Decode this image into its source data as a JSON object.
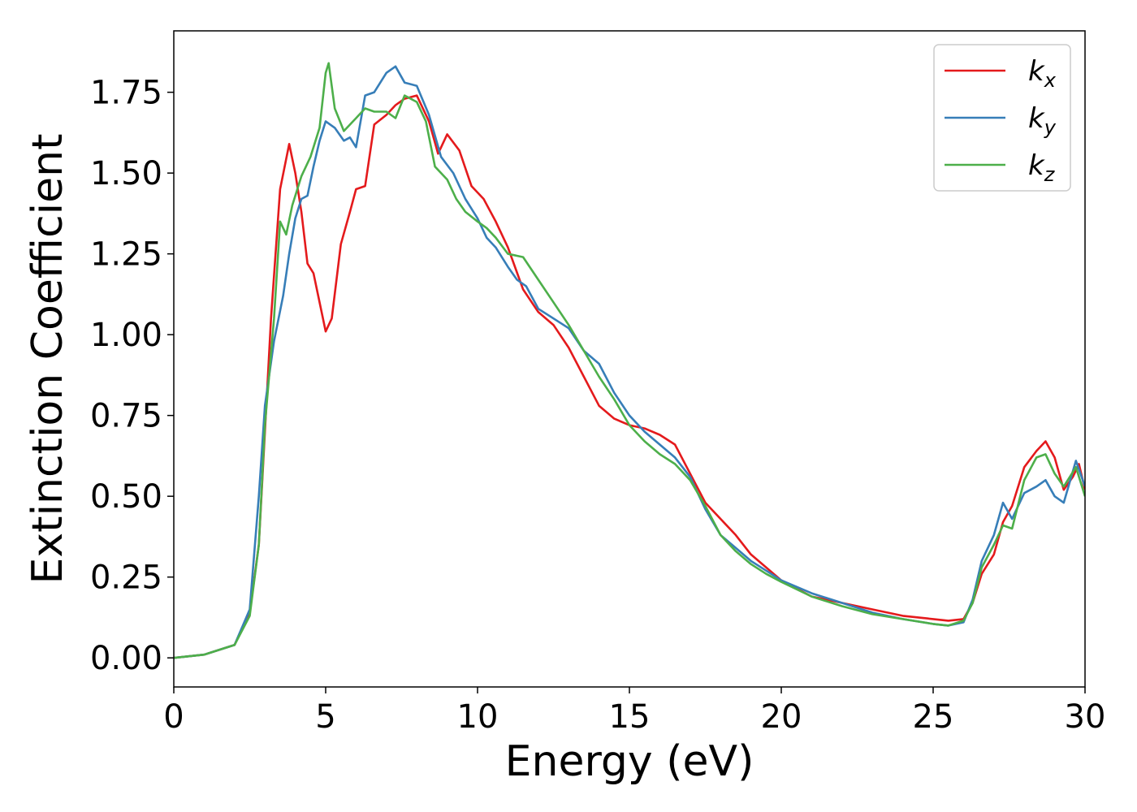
{
  "chart_data": {
    "type": "line",
    "xlabel": "Energy (eV)",
    "ylabel": "Extinction Coefficient",
    "xlim": [
      0,
      30
    ],
    "ylim": [
      -0.09,
      1.94
    ],
    "xticks": [
      0,
      5,
      10,
      15,
      20,
      25,
      30
    ],
    "yticks": [
      "0.00",
      "0.25",
      "0.50",
      "0.75",
      "1.00",
      "1.25",
      "1.50",
      "1.75"
    ],
    "grid": false,
    "legend_position": "top-right",
    "series": [
      {
        "name": "kx",
        "label_main": "k",
        "label_sub": "x",
        "color": "#e41a1c",
        "points": [
          [
            0,
            0
          ],
          [
            1,
            0.01
          ],
          [
            2,
            0.04
          ],
          [
            2.5,
            0.14
          ],
          [
            2.8,
            0.35
          ],
          [
            3.0,
            0.7
          ],
          [
            3.2,
            1.05
          ],
          [
            3.5,
            1.45
          ],
          [
            3.8,
            1.59
          ],
          [
            4.0,
            1.5
          ],
          [
            4.2,
            1.38
          ],
          [
            4.4,
            1.22
          ],
          [
            4.6,
            1.19
          ],
          [
            4.8,
            1.1
          ],
          [
            5.0,
            1.01
          ],
          [
            5.2,
            1.05
          ],
          [
            5.5,
            1.28
          ],
          [
            5.8,
            1.38
          ],
          [
            6.0,
            1.45
          ],
          [
            6.3,
            1.46
          ],
          [
            6.6,
            1.65
          ],
          [
            7.0,
            1.68
          ],
          [
            7.3,
            1.71
          ],
          [
            7.6,
            1.73
          ],
          [
            8.0,
            1.74
          ],
          [
            8.4,
            1.66
          ],
          [
            8.7,
            1.56
          ],
          [
            9.0,
            1.62
          ],
          [
            9.4,
            1.57
          ],
          [
            9.8,
            1.46
          ],
          [
            10.2,
            1.42
          ],
          [
            10.6,
            1.35
          ],
          [
            11.0,
            1.27
          ],
          [
            11.5,
            1.14
          ],
          [
            12.0,
            1.07
          ],
          [
            12.5,
            1.03
          ],
          [
            13.0,
            0.96
          ],
          [
            13.5,
            0.87
          ],
          [
            14.0,
            0.78
          ],
          [
            14.5,
            0.74
          ],
          [
            15.0,
            0.72
          ],
          [
            15.5,
            0.71
          ],
          [
            16.0,
            0.69
          ],
          [
            16.5,
            0.66
          ],
          [
            17.0,
            0.57
          ],
          [
            17.5,
            0.48
          ],
          [
            18.0,
            0.43
          ],
          [
            18.5,
            0.38
          ],
          [
            19.0,
            0.32
          ],
          [
            19.5,
            0.28
          ],
          [
            20.0,
            0.24
          ],
          [
            21.0,
            0.19
          ],
          [
            22.0,
            0.17
          ],
          [
            23.0,
            0.15
          ],
          [
            24.0,
            0.13
          ],
          [
            25.0,
            0.12
          ],
          [
            25.5,
            0.115
          ],
          [
            26.0,
            0.12
          ],
          [
            26.3,
            0.17
          ],
          [
            26.6,
            0.26
          ],
          [
            27.0,
            0.32
          ],
          [
            27.3,
            0.42
          ],
          [
            27.6,
            0.47
          ],
          [
            28.0,
            0.59
          ],
          [
            28.4,
            0.64
          ],
          [
            28.7,
            0.67
          ],
          [
            29.0,
            0.62
          ],
          [
            29.3,
            0.52
          ],
          [
            29.6,
            0.56
          ],
          [
            29.8,
            0.6
          ],
          [
            30.0,
            0.52
          ]
        ]
      },
      {
        "name": "ky",
        "label_main": "k",
        "label_sub": "y",
        "color": "#377eb8",
        "points": [
          [
            0,
            0
          ],
          [
            1,
            0.01
          ],
          [
            2,
            0.04
          ],
          [
            2.5,
            0.15
          ],
          [
            2.8,
            0.5
          ],
          [
            3.0,
            0.78
          ],
          [
            3.3,
            0.98
          ],
          [
            3.6,
            1.12
          ],
          [
            3.8,
            1.25
          ],
          [
            4.0,
            1.36
          ],
          [
            4.2,
            1.42
          ],
          [
            4.4,
            1.43
          ],
          [
            4.6,
            1.52
          ],
          [
            4.8,
            1.6
          ],
          [
            5.0,
            1.66
          ],
          [
            5.3,
            1.64
          ],
          [
            5.6,
            1.6
          ],
          [
            5.8,
            1.61
          ],
          [
            6.0,
            1.58
          ],
          [
            6.3,
            1.74
          ],
          [
            6.6,
            1.75
          ],
          [
            7.0,
            1.81
          ],
          [
            7.3,
            1.83
          ],
          [
            7.6,
            1.78
          ],
          [
            8.0,
            1.77
          ],
          [
            8.4,
            1.68
          ],
          [
            8.8,
            1.55
          ],
          [
            9.2,
            1.5
          ],
          [
            9.6,
            1.42
          ],
          [
            10.0,
            1.36
          ],
          [
            10.3,
            1.3
          ],
          [
            10.6,
            1.27
          ],
          [
            11.0,
            1.21
          ],
          [
            11.3,
            1.17
          ],
          [
            11.6,
            1.15
          ],
          [
            12.0,
            1.08
          ],
          [
            12.5,
            1.05
          ],
          [
            13.0,
            1.02
          ],
          [
            13.5,
            0.95
          ],
          [
            14.0,
            0.91
          ],
          [
            14.5,
            0.82
          ],
          [
            15.0,
            0.75
          ],
          [
            15.5,
            0.7
          ],
          [
            16.0,
            0.66
          ],
          [
            16.5,
            0.62
          ],
          [
            17.0,
            0.56
          ],
          [
            17.5,
            0.46
          ],
          [
            18.0,
            0.38
          ],
          [
            18.5,
            0.34
          ],
          [
            19.0,
            0.3
          ],
          [
            19.5,
            0.27
          ],
          [
            20.0,
            0.24
          ],
          [
            21.0,
            0.2
          ],
          [
            22.0,
            0.17
          ],
          [
            23.0,
            0.14
          ],
          [
            24.0,
            0.12
          ],
          [
            25.0,
            0.105
          ],
          [
            25.5,
            0.1
          ],
          [
            26.0,
            0.11
          ],
          [
            26.3,
            0.18
          ],
          [
            26.6,
            0.3
          ],
          [
            27.0,
            0.38
          ],
          [
            27.3,
            0.48
          ],
          [
            27.6,
            0.43
          ],
          [
            28.0,
            0.51
          ],
          [
            28.4,
            0.53
          ],
          [
            28.7,
            0.55
          ],
          [
            29.0,
            0.5
          ],
          [
            29.3,
            0.48
          ],
          [
            29.7,
            0.61
          ],
          [
            30.0,
            0.53
          ]
        ]
      },
      {
        "name": "kz",
        "label_main": "k",
        "label_sub": "z",
        "color": "#4daf4a",
        "points": [
          [
            0,
            0
          ],
          [
            1,
            0.01
          ],
          [
            2,
            0.04
          ],
          [
            2.5,
            0.13
          ],
          [
            2.8,
            0.35
          ],
          [
            3.0,
            0.72
          ],
          [
            3.3,
            1.05
          ],
          [
            3.5,
            1.35
          ],
          [
            3.7,
            1.31
          ],
          [
            3.9,
            1.4
          ],
          [
            4.2,
            1.49
          ],
          [
            4.5,
            1.55
          ],
          [
            4.8,
            1.64
          ],
          [
            5.0,
            1.81
          ],
          [
            5.1,
            1.84
          ],
          [
            5.3,
            1.7
          ],
          [
            5.6,
            1.63
          ],
          [
            6.0,
            1.67
          ],
          [
            6.3,
            1.7
          ],
          [
            6.6,
            1.69
          ],
          [
            7.0,
            1.69
          ],
          [
            7.3,
            1.67
          ],
          [
            7.6,
            1.74
          ],
          [
            8.0,
            1.72
          ],
          [
            8.3,
            1.66
          ],
          [
            8.6,
            1.52
          ],
          [
            9.0,
            1.48
          ],
          [
            9.3,
            1.42
          ],
          [
            9.6,
            1.38
          ],
          [
            10.0,
            1.35
          ],
          [
            10.3,
            1.33
          ],
          [
            10.6,
            1.3
          ],
          [
            11.0,
            1.25
          ],
          [
            11.5,
            1.24
          ],
          [
            12.0,
            1.17
          ],
          [
            12.5,
            1.1
          ],
          [
            13.0,
            1.03
          ],
          [
            13.5,
            0.95
          ],
          [
            14.0,
            0.87
          ],
          [
            14.5,
            0.8
          ],
          [
            15.0,
            0.72
          ],
          [
            15.5,
            0.67
          ],
          [
            16.0,
            0.63
          ],
          [
            16.5,
            0.6
          ],
          [
            17.0,
            0.55
          ],
          [
            17.5,
            0.47
          ],
          [
            18.0,
            0.38
          ],
          [
            18.5,
            0.33
          ],
          [
            19.0,
            0.29
          ],
          [
            19.5,
            0.26
          ],
          [
            20.0,
            0.235
          ],
          [
            21.0,
            0.19
          ],
          [
            22.0,
            0.16
          ],
          [
            23.0,
            0.135
          ],
          [
            24.0,
            0.12
          ],
          [
            25.0,
            0.105
          ],
          [
            25.5,
            0.1
          ],
          [
            26.0,
            0.115
          ],
          [
            26.3,
            0.17
          ],
          [
            26.6,
            0.28
          ],
          [
            27.0,
            0.35
          ],
          [
            27.3,
            0.41
          ],
          [
            27.6,
            0.4
          ],
          [
            28.0,
            0.55
          ],
          [
            28.4,
            0.62
          ],
          [
            28.7,
            0.63
          ],
          [
            29.0,
            0.57
          ],
          [
            29.3,
            0.53
          ],
          [
            29.7,
            0.59
          ],
          [
            30.0,
            0.5
          ]
        ]
      }
    ]
  }
}
